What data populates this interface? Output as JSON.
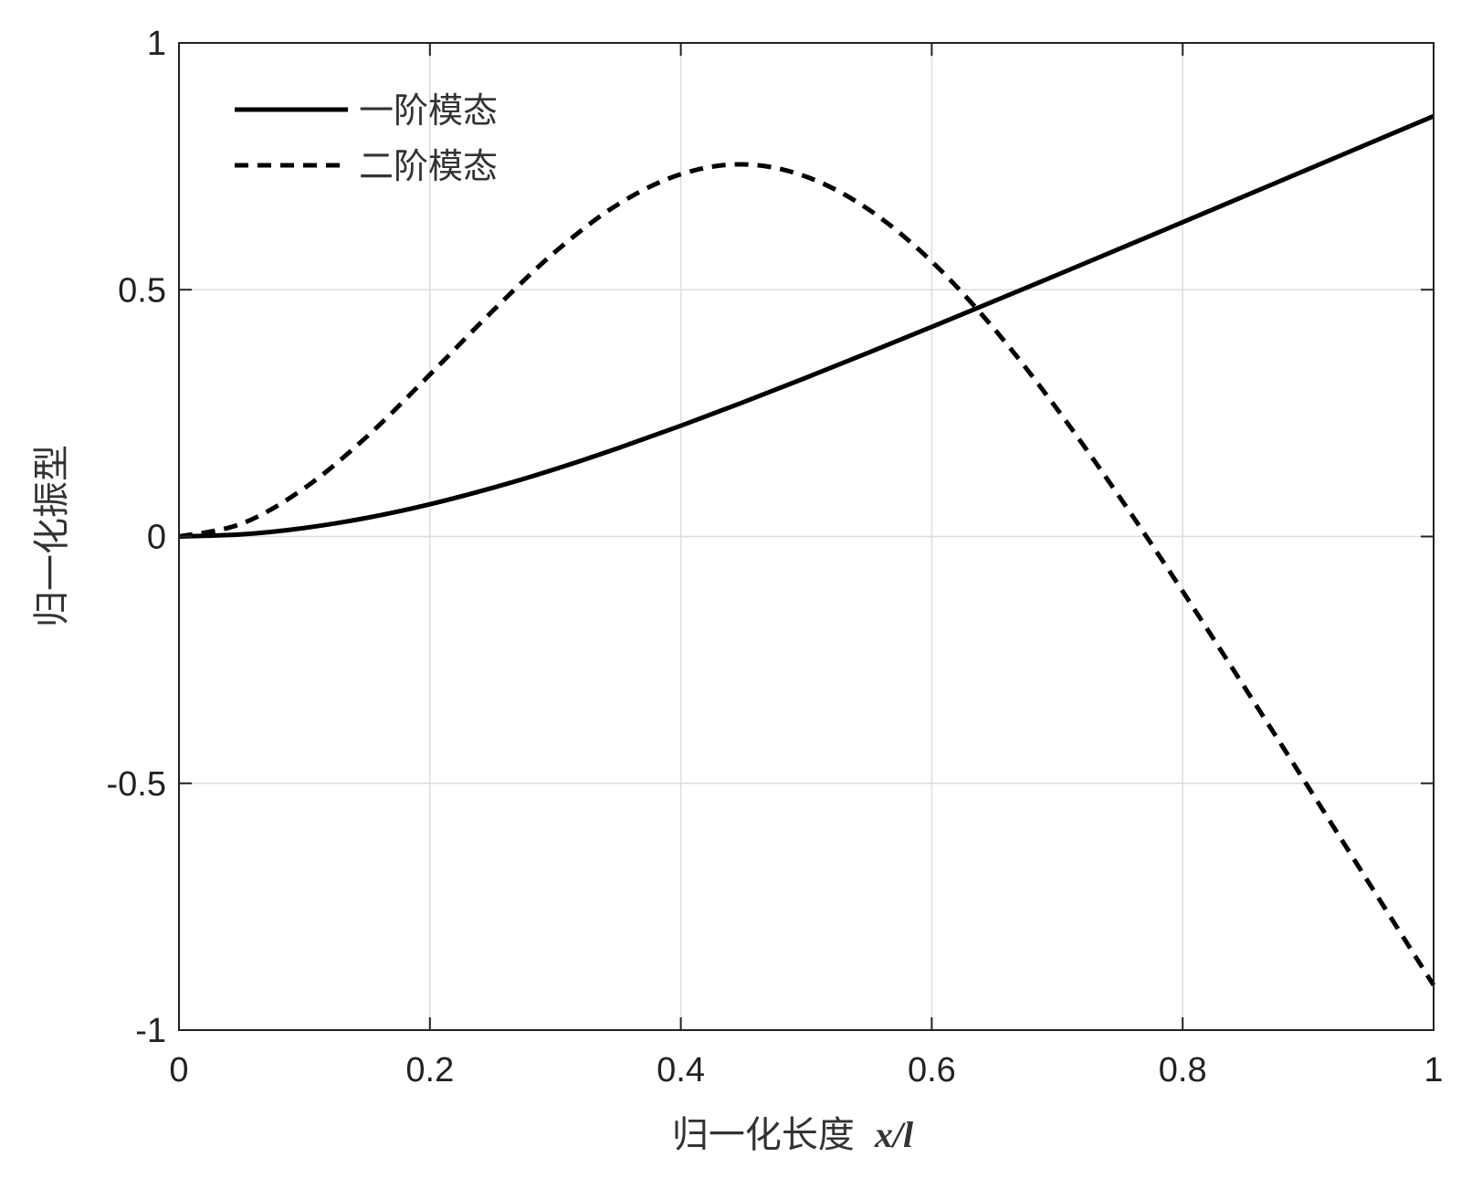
{
  "chart_data": {
    "type": "line",
    "xlabel": "归一化长度",
    "xlabel_var": "x/l",
    "ylabel": "归一化振型",
    "xlim": [
      0,
      1
    ],
    "ylim": [
      -1,
      1
    ],
    "xticks": [
      0,
      0.2,
      0.4,
      0.6,
      0.8,
      1
    ],
    "xtick_labels": [
      "0",
      "0.2",
      "0.4",
      "0.6",
      "0.8",
      "1"
    ],
    "yticks": [
      -1,
      -0.5,
      0,
      0.5,
      1
    ],
    "ytick_labels": [
      "-1",
      "-0.5",
      "0",
      "0.5",
      "1"
    ],
    "grid": true,
    "legend_position": "top-left",
    "x": [
      0,
      0.05,
      0.1,
      0.15,
      0.2,
      0.25,
      0.3,
      0.35,
      0.4,
      0.45,
      0.5,
      0.55,
      0.6,
      0.65,
      0.7,
      0.75,
      0.8,
      0.85,
      0.9,
      0.95,
      1.0
    ],
    "series": [
      {
        "name": "一阶模态",
        "style": "solid",
        "color": "#000000",
        "values": [
          0,
          0.0044,
          0.0173,
          0.0379,
          0.0653,
          0.0986,
          0.1367,
          0.179,
          0.2245,
          0.2724,
          0.322,
          0.3729,
          0.4247,
          0.4772,
          0.5301,
          0.5833,
          0.6368,
          0.6904,
          0.7441,
          0.7979,
          0.8517
        ]
      },
      {
        "name": "二阶模态",
        "style": "dashed",
        "color": "#000000",
        "values": [
          0,
          0.026,
          0.098,
          0.203,
          0.328,
          0.457,
          0.577,
          0.673,
          0.734,
          0.754,
          0.729,
          0.662,
          0.557,
          0.42,
          0.258,
          0.079,
          -0.111,
          -0.308,
          -0.507,
          -0.708,
          -0.909
        ]
      }
    ]
  }
}
